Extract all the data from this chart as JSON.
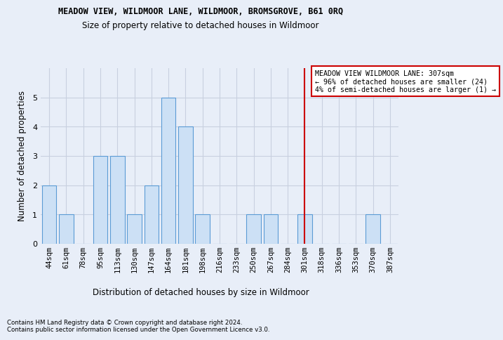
{
  "title": "MEADOW VIEW, WILDMOOR LANE, WILDMOOR, BROMSGROVE, B61 0RQ",
  "subtitle": "Size of property relative to detached houses in Wildmoor",
  "xlabel": "Distribution of detached houses by size in Wildmoor",
  "ylabel": "Number of detached properties",
  "categories": [
    "44sqm",
    "61sqm",
    "78sqm",
    "95sqm",
    "113sqm",
    "130sqm",
    "147sqm",
    "164sqm",
    "181sqm",
    "198sqm",
    "216sqm",
    "233sqm",
    "250sqm",
    "267sqm",
    "284sqm",
    "301sqm",
    "318sqm",
    "336sqm",
    "353sqm",
    "370sqm",
    "387sqm"
  ],
  "values": [
    2,
    1,
    0,
    3,
    3,
    1,
    2,
    5,
    4,
    1,
    0,
    0,
    1,
    1,
    0,
    1,
    0,
    0,
    0,
    1,
    0
  ],
  "bar_color": "#cce0f5",
  "bar_edge_color": "#5b9bd5",
  "ylim": [
    0,
    6
  ],
  "yticks": [
    0,
    1,
    2,
    3,
    4,
    5,
    6
  ],
  "vline_index": 15,
  "vline_color": "#cc0000",
  "annotation_text": "MEADOW VIEW WILDMOOR LANE: 307sqm\n← 96% of detached houses are smaller (24)\n4% of semi-detached houses are larger (1) →",
  "footer": "Contains HM Land Registry data © Crown copyright and database right 2024.\nContains public sector information licensed under the Open Government Licence v3.0.",
  "background_color": "#e8eef8",
  "grid_color": "#c8d0e0"
}
